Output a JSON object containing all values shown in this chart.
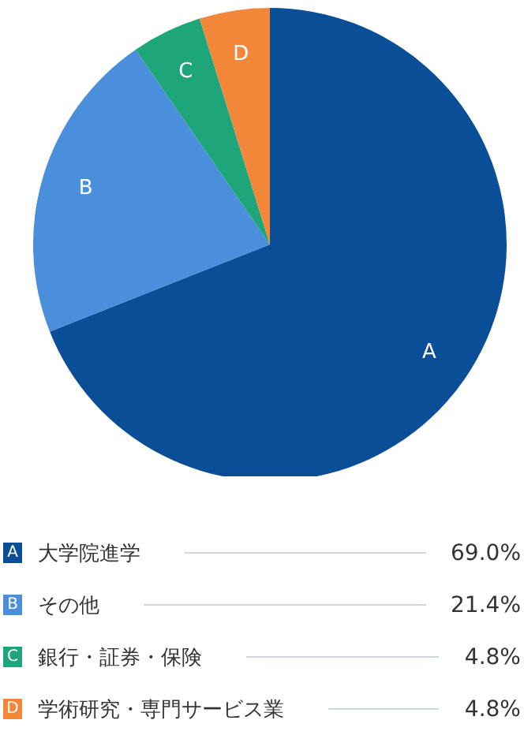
{
  "chart_data": {
    "type": "pie",
    "categories": [
      "大学院進学",
      "その他",
      "銀行・証券・保険",
      "学術研究・専門サービス業"
    ],
    "values": [
      69.0,
      21.4,
      4.8,
      4.8
    ],
    "value_labels": [
      "69.0%",
      "21.4%",
      "4.8%",
      "4.8%"
    ],
    "colors": [
      "#0b4e98",
      "#4a8fdb",
      "#1ea57a",
      "#f2873a"
    ],
    "annotations": [
      "A",
      "B",
      "C",
      "D"
    ],
    "legend": "bottom"
  }
}
